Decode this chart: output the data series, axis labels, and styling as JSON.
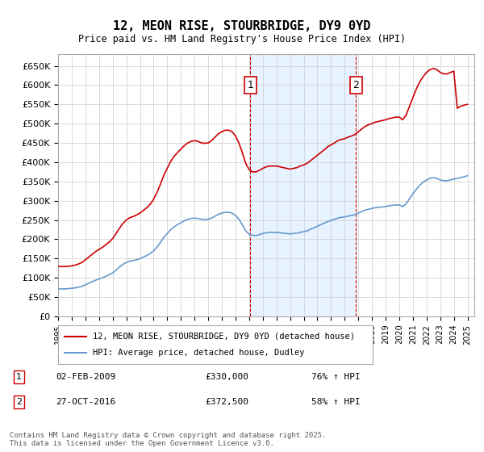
{
  "title": "12, MEON RISE, STOURBRIDGE, DY9 0YD",
  "subtitle": "Price paid vs. HM Land Registry's House Price Index (HPI)",
  "ylabel_ticks": [
    "£0",
    "£50K",
    "£100K",
    "£150K",
    "£200K",
    "£250K",
    "£300K",
    "£350K",
    "£400K",
    "£450K",
    "£500K",
    "£550K",
    "£600K",
    "£650K"
  ],
  "ylim": [
    0,
    680000
  ],
  "xlim_start": 1995.0,
  "xlim_end": 2025.5,
  "transaction1_date": 2009.09,
  "transaction1_price": 330000,
  "transaction1_label": "1",
  "transaction2_date": 2016.83,
  "transaction2_price": 372500,
  "transaction2_label": "2",
  "legend_line1": "12, MEON RISE, STOURBRIDGE, DY9 0YD (detached house)",
  "legend_line2": "HPI: Average price, detached house, Dudley",
  "annotation1": "1     02-FEB-2009          £330,000          76% ↑ HPI",
  "annotation2": "2     27-OCT-2016          £372,500          58% ↑ HPI",
  "footer": "Contains HM Land Registry data © Crown copyright and database right 2025.\nThis data is licensed under the Open Government Licence v3.0.",
  "red_color": "#cc0000",
  "blue_color": "#6699cc",
  "bg_color": "#ffffff",
  "grid_color": "#cccccc",
  "shade_color": "#ddeeff",
  "hpi_data_x": [
    1995.0,
    1995.25,
    1995.5,
    1995.75,
    1996.0,
    1996.25,
    1996.5,
    1996.75,
    1997.0,
    1997.25,
    1997.5,
    1997.75,
    1998.0,
    1998.25,
    1998.5,
    1998.75,
    1999.0,
    1999.25,
    1999.5,
    1999.75,
    2000.0,
    2000.25,
    2000.5,
    2000.75,
    2001.0,
    2001.25,
    2001.5,
    2001.75,
    2002.0,
    2002.25,
    2002.5,
    2002.75,
    2003.0,
    2003.25,
    2003.5,
    2003.75,
    2004.0,
    2004.25,
    2004.5,
    2004.75,
    2005.0,
    2005.25,
    2005.5,
    2005.75,
    2006.0,
    2006.25,
    2006.5,
    2006.75,
    2007.0,
    2007.25,
    2007.5,
    2007.75,
    2008.0,
    2008.25,
    2008.5,
    2008.75,
    2009.0,
    2009.25,
    2009.5,
    2009.75,
    2010.0,
    2010.25,
    2010.5,
    2010.75,
    2011.0,
    2011.25,
    2011.5,
    2011.75,
    2012.0,
    2012.25,
    2012.5,
    2012.75,
    2013.0,
    2013.25,
    2013.5,
    2013.75,
    2014.0,
    2014.25,
    2014.5,
    2014.75,
    2015.0,
    2015.25,
    2015.5,
    2015.75,
    2016.0,
    2016.25,
    2016.5,
    2016.75,
    2017.0,
    2017.25,
    2017.5,
    2017.75,
    2018.0,
    2018.25,
    2018.5,
    2018.75,
    2019.0,
    2019.25,
    2019.5,
    2019.75,
    2020.0,
    2020.25,
    2020.5,
    2020.75,
    2021.0,
    2021.25,
    2021.5,
    2021.75,
    2022.0,
    2022.25,
    2022.5,
    2022.75,
    2023.0,
    2023.25,
    2023.5,
    2023.75,
    2024.0,
    2024.25,
    2024.5,
    2024.75,
    2025.0
  ],
  "hpi_data_y": [
    72000,
    71000,
    71500,
    72000,
    73000,
    74000,
    76000,
    78000,
    82000,
    86000,
    90000,
    94000,
    97000,
    100000,
    104000,
    108000,
    113000,
    120000,
    128000,
    135000,
    140000,
    143000,
    145000,
    147000,
    150000,
    154000,
    158000,
    163000,
    170000,
    180000,
    192000,
    205000,
    215000,
    225000,
    232000,
    238000,
    243000,
    248000,
    252000,
    254000,
    255000,
    254000,
    252000,
    251000,
    252000,
    255000,
    260000,
    265000,
    268000,
    270000,
    270000,
    268000,
    262000,
    252000,
    238000,
    222000,
    213000,
    210000,
    210000,
    212000,
    215000,
    217000,
    218000,
    218000,
    218000,
    217000,
    216000,
    215000,
    214000,
    215000,
    216000,
    218000,
    220000,
    222000,
    226000,
    230000,
    234000,
    238000,
    242000,
    246000,
    249000,
    252000,
    255000,
    257000,
    258000,
    260000,
    262000,
    264000,
    268000,
    272000,
    276000,
    278000,
    280000,
    282000,
    283000,
    284000,
    285000,
    287000,
    288000,
    289000,
    289000,
    285000,
    292000,
    305000,
    318000,
    330000,
    340000,
    348000,
    354000,
    358000,
    360000,
    358000,
    354000,
    352000,
    352000,
    354000,
    356000,
    358000,
    360000,
    362000,
    365000
  ],
  "red_data_x": [
    1995.0,
    1995.25,
    1995.5,
    1995.75,
    1996.0,
    1996.25,
    1996.5,
    1996.75,
    1997.0,
    1997.25,
    1997.5,
    1997.75,
    1998.0,
    1998.25,
    1998.5,
    1998.75,
    1999.0,
    1999.25,
    1999.5,
    1999.75,
    2000.0,
    2000.25,
    2000.5,
    2000.75,
    2001.0,
    2001.25,
    2001.5,
    2001.75,
    2002.0,
    2002.25,
    2002.5,
    2002.75,
    2003.0,
    2003.25,
    2003.5,
    2003.75,
    2004.0,
    2004.25,
    2004.5,
    2004.75,
    2005.0,
    2005.25,
    2005.5,
    2005.75,
    2006.0,
    2006.25,
    2006.5,
    2006.75,
    2007.0,
    2007.25,
    2007.5,
    2007.75,
    2008.0,
    2008.25,
    2008.5,
    2008.75,
    2009.0,
    2009.25,
    2009.5,
    2009.75,
    2010.0,
    2010.25,
    2010.5,
    2010.75,
    2011.0,
    2011.25,
    2011.5,
    2011.75,
    2012.0,
    2012.25,
    2012.5,
    2012.75,
    2013.0,
    2013.25,
    2013.5,
    2013.75,
    2014.0,
    2014.25,
    2014.5,
    2014.75,
    2015.0,
    2015.25,
    2015.5,
    2015.75,
    2016.0,
    2016.25,
    2016.5,
    2016.75,
    2017.0,
    2017.25,
    2017.5,
    2017.75,
    2018.0,
    2018.25,
    2018.5,
    2018.75,
    2019.0,
    2019.25,
    2019.5,
    2019.75,
    2020.0,
    2020.25,
    2020.5,
    2020.75,
    2021.0,
    2021.25,
    2021.5,
    2021.75,
    2022.0,
    2022.25,
    2022.5,
    2022.75,
    2023.0,
    2023.25,
    2023.5,
    2023.75,
    2024.0,
    2024.25,
    2024.5,
    2024.75,
    2025.0
  ],
  "red_data_y": [
    130000,
    129000,
    129500,
    130000,
    131000,
    133000,
    136000,
    140000,
    147000,
    154000,
    161000,
    168000,
    174000,
    179000,
    186000,
    193000,
    202000,
    215000,
    229000,
    241000,
    250000,
    256000,
    259000,
    263000,
    268000,
    275000,
    282000,
    291000,
    304000,
    322000,
    343000,
    366000,
    384000,
    402000,
    415000,
    425000,
    434000,
    443000,
    450000,
    454000,
    456000,
    454000,
    450000,
    449000,
    450000,
    456000,
    465000,
    474000,
    479000,
    483000,
    483000,
    479000,
    468000,
    450000,
    425000,
    397000,
    381000,
    375000,
    375000,
    379000,
    384000,
    388000,
    390000,
    390000,
    390000,
    388000,
    386000,
    384000,
    382000,
    384000,
    386000,
    390000,
    393000,
    397000,
    404000,
    411000,
    418000,
    425000,
    432000,
    440000,
    445000,
    450000,
    456000,
    459000,
    461000,
    465000,
    468000,
    472000,
    479000,
    486000,
    493000,
    497000,
    500000,
    504000,
    506000,
    508000,
    510000,
    513000,
    515000,
    517000,
    517000,
    510000,
    522000,
    545000,
    568000,
    590000,
    608000,
    622000,
    633000,
    640000,
    643000,
    640000,
    633000,
    629000,
    629000,
    633000,
    636000,
    540000,
    545000,
    548000,
    550000
  ]
}
